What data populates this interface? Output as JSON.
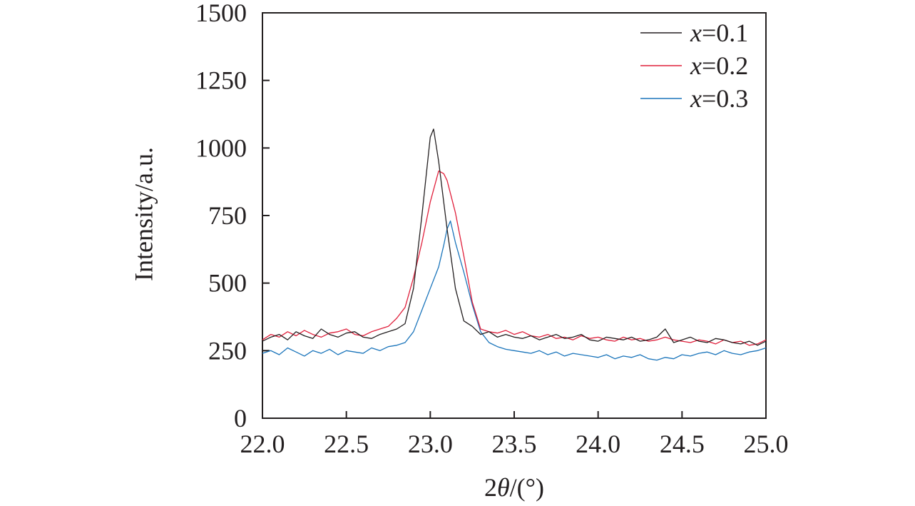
{
  "chart_data": {
    "type": "line",
    "title": "",
    "xlabel_prefix": "2",
    "xlabel_symbol": "θ",
    "xlabel_suffix": "/(°)",
    "ylabel": "Intensity/a.u.",
    "xlim": [
      22.0,
      25.0
    ],
    "ylim": [
      0,
      1500
    ],
    "xticks": [
      22.0,
      22.5,
      23.0,
      23.5,
      24.0,
      24.5,
      25.0
    ],
    "xtick_labels": [
      "22.0",
      "22.5",
      "23.0",
      "23.5",
      "24.0",
      "24.5",
      "25.0"
    ],
    "yticks": [
      0,
      250,
      500,
      750,
      1000,
      1250,
      1500
    ],
    "ytick_labels": [
      "0",
      "250",
      "500",
      "750",
      "1000",
      "1250",
      "1500"
    ],
    "legend_position": "top-right",
    "series": [
      {
        "name": "x=0.1",
        "legend_var": "x",
        "legend_rest": "=0.1",
        "color": "#231f20",
        "x": [
          22.0,
          22.05,
          22.1,
          22.15,
          22.2,
          22.25,
          22.3,
          22.35,
          22.4,
          22.45,
          22.5,
          22.55,
          22.6,
          22.65,
          22.7,
          22.75,
          22.8,
          22.85,
          22.9,
          22.95,
          23.0,
          23.02,
          23.05,
          23.1,
          23.15,
          23.2,
          23.25,
          23.3,
          23.35,
          23.4,
          23.45,
          23.5,
          23.55,
          23.6,
          23.65,
          23.7,
          23.75,
          23.8,
          23.85,
          23.9,
          23.95,
          24.0,
          24.05,
          24.1,
          24.15,
          24.2,
          24.25,
          24.3,
          24.35,
          24.4,
          24.45,
          24.5,
          24.55,
          24.6,
          24.65,
          24.7,
          24.75,
          24.8,
          24.85,
          24.9,
          24.95,
          25.0
        ],
        "y": [
          285,
          300,
          310,
          290,
          320,
          305,
          295,
          330,
          310,
          300,
          315,
          320,
          300,
          295,
          310,
          320,
          330,
          350,
          480,
          750,
          1040,
          1070,
          950,
          700,
          480,
          360,
          340,
          310,
          320,
          300,
          310,
          300,
          295,
          305,
          290,
          300,
          310,
          295,
          300,
          310,
          290,
          285,
          300,
          295,
          290,
          300,
          285,
          290,
          300,
          330,
          280,
          290,
          300,
          285,
          280,
          295,
          290,
          280,
          275,
          285,
          270,
          285
        ]
      },
      {
        "name": "x=0.2",
        "legend_var": "x",
        "legend_rest": "=0.2",
        "color": "#e0203c",
        "x": [
          22.0,
          22.05,
          22.1,
          22.15,
          22.2,
          22.25,
          22.3,
          22.35,
          22.4,
          22.45,
          22.5,
          22.55,
          22.6,
          22.65,
          22.7,
          22.75,
          22.8,
          22.85,
          22.9,
          22.95,
          23.0,
          23.05,
          23.08,
          23.1,
          23.15,
          23.2,
          23.25,
          23.3,
          23.35,
          23.4,
          23.45,
          23.5,
          23.55,
          23.6,
          23.65,
          23.7,
          23.75,
          23.8,
          23.85,
          23.9,
          23.95,
          24.0,
          24.05,
          24.1,
          24.15,
          24.2,
          24.25,
          24.3,
          24.35,
          24.4,
          24.45,
          24.5,
          24.55,
          24.6,
          24.65,
          24.7,
          24.75,
          24.8,
          24.85,
          24.9,
          24.95,
          25.0
        ],
        "y": [
          290,
          310,
          300,
          320,
          305,
          325,
          310,
          300,
          315,
          320,
          330,
          310,
          305,
          320,
          330,
          340,
          370,
          410,
          520,
          650,
          800,
          915,
          905,
          880,
          760,
          600,
          430,
          330,
          320,
          315,
          325,
          310,
          320,
          305,
          300,
          310,
          295,
          300,
          290,
          305,
          295,
          300,
          290,
          285,
          300,
          290,
          295,
          285,
          290,
          300,
          290,
          285,
          280,
          290,
          285,
          275,
          290,
          280,
          285,
          270,
          275,
          290
        ]
      },
      {
        "name": "x=0.3",
        "legend_var": "x",
        "legend_rest": "=0.3",
        "color": "#1b75bb",
        "x": [
          22.0,
          22.05,
          22.1,
          22.15,
          22.2,
          22.25,
          22.3,
          22.35,
          22.4,
          22.45,
          22.5,
          22.55,
          22.6,
          22.65,
          22.7,
          22.75,
          22.8,
          22.85,
          22.9,
          22.95,
          23.0,
          23.05,
          23.08,
          23.1,
          23.12,
          23.15,
          23.2,
          23.25,
          23.3,
          23.35,
          23.4,
          23.45,
          23.5,
          23.55,
          23.6,
          23.65,
          23.7,
          23.75,
          23.8,
          23.85,
          23.9,
          23.95,
          24.0,
          24.05,
          24.1,
          24.15,
          24.2,
          24.25,
          24.3,
          24.35,
          24.4,
          24.45,
          24.5,
          24.55,
          24.6,
          24.65,
          24.7,
          24.75,
          24.8,
          24.85,
          24.9,
          24.95,
          25.0
        ],
        "y": [
          240,
          250,
          235,
          260,
          245,
          230,
          250,
          240,
          255,
          235,
          250,
          245,
          240,
          260,
          250,
          265,
          270,
          280,
          320,
          400,
          480,
          560,
          640,
          700,
          730,
          650,
          540,
          420,
          320,
          280,
          265,
          255,
          250,
          245,
          240,
          250,
          235,
          245,
          230,
          240,
          235,
          230,
          225,
          235,
          220,
          230,
          225,
          235,
          220,
          215,
          225,
          220,
          235,
          230,
          240,
          245,
          235,
          250,
          240,
          235,
          245,
          250,
          260
        ]
      }
    ]
  }
}
